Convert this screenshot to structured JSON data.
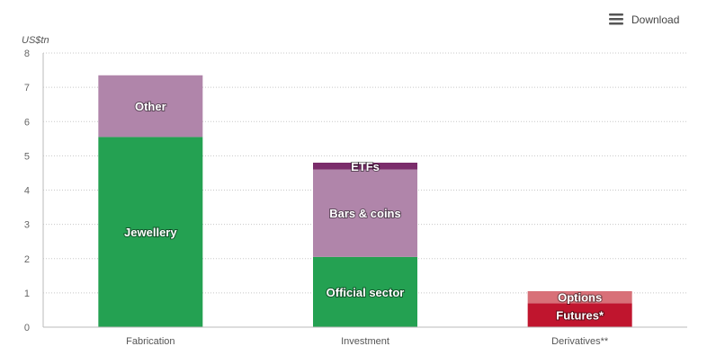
{
  "toolbar": {
    "download_label": "Download",
    "download_icon": "hamburger-menu-icon"
  },
  "chart_data": {
    "type": "bar",
    "stacked": true,
    "unit_label": "US$tn",
    "ylim": [
      0,
      8
    ],
    "yticks": [
      "0",
      "1",
      "2",
      "3",
      "4",
      "5",
      "6",
      "7",
      "8"
    ],
    "grid": true,
    "categories": [
      "Fabrication",
      "Investment",
      "Derivatives**"
    ],
    "bars": [
      {
        "category": "Fabrication",
        "segments": [
          {
            "label": "Jewellery",
            "value": 5.55,
            "color": "#24a152"
          },
          {
            "label": "Other",
            "value": 1.8,
            "color": "#b085aa"
          }
        ]
      },
      {
        "category": "Investment",
        "segments": [
          {
            "label": "Official sector",
            "value": 2.05,
            "color": "#24a152"
          },
          {
            "label": "Bars & coins",
            "value": 2.55,
            "color": "#b085aa"
          },
          {
            "label": "ETFs",
            "value": 0.2,
            "color": "#7b2d6b"
          }
        ]
      },
      {
        "category": "Derivatives**",
        "segments": [
          {
            "label": "Futures*",
            "value": 0.7,
            "color": "#c0152e"
          },
          {
            "label": "Options",
            "value": 0.35,
            "color": "#d87078"
          }
        ]
      }
    ]
  }
}
